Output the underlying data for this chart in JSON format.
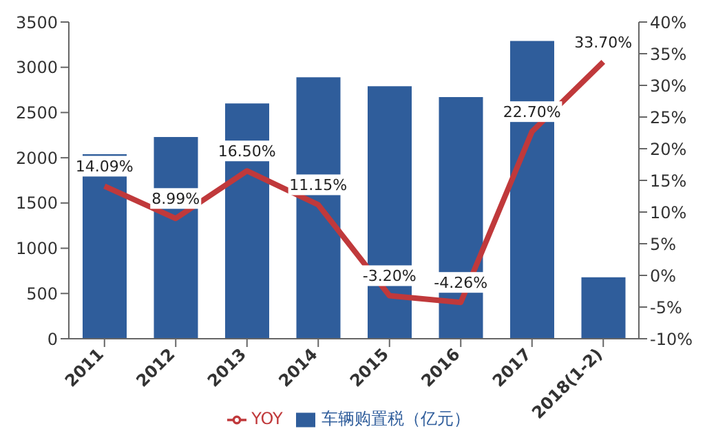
{
  "chart_data": {
    "type": "bar",
    "categories": [
      "2011",
      "2012",
      "2013",
      "2014",
      "2015",
      "2016",
      "2017",
      "2018(1-2)"
    ],
    "series": [
      {
        "name": "车辆购置税（亿元）",
        "color": "#2f5d9b",
        "values": [
          2040,
          2230,
          2600,
          2890,
          2790,
          2670,
          3290,
          680
        ]
      },
      {
        "name": "YOY",
        "type": "line",
        "axis": "y2",
        "color": "#c0393b",
        "values": [
          14.09,
          8.99,
          16.5,
          11.15,
          -3.2,
          -4.26,
          22.7,
          33.7
        ],
        "value_labels": [
          "14.09%",
          "8.99%",
          "16.50%",
          "11.15%",
          "-3.20%",
          "-4.26%",
          "22.70%",
          "33.70%"
        ]
      }
    ],
    "ylim": [
      0,
      3500
    ],
    "yticks": [
      0,
      500,
      1000,
      1500,
      2000,
      2500,
      3000,
      3500
    ],
    "y2lim": [
      -10,
      40
    ],
    "y2ticks": [
      {
        "value": -10,
        "label": "-10%"
      },
      {
        "value": -5,
        "label": "-5%"
      },
      {
        "value": 0,
        "label": "0%"
      },
      {
        "value": 5,
        "label": "5%"
      },
      {
        "value": 10,
        "label": "10%"
      },
      {
        "value": 15,
        "label": "15%"
      },
      {
        "value": 20,
        "label": "20%"
      },
      {
        "value": 25,
        "label": "25%"
      },
      {
        "value": 30,
        "label": "30%"
      },
      {
        "value": 35,
        "label": "35%"
      },
      {
        "value": 40,
        "label": "40%"
      }
    ],
    "legend": "bottom",
    "marker": "none",
    "line_style": "solid",
    "grid": false
  }
}
